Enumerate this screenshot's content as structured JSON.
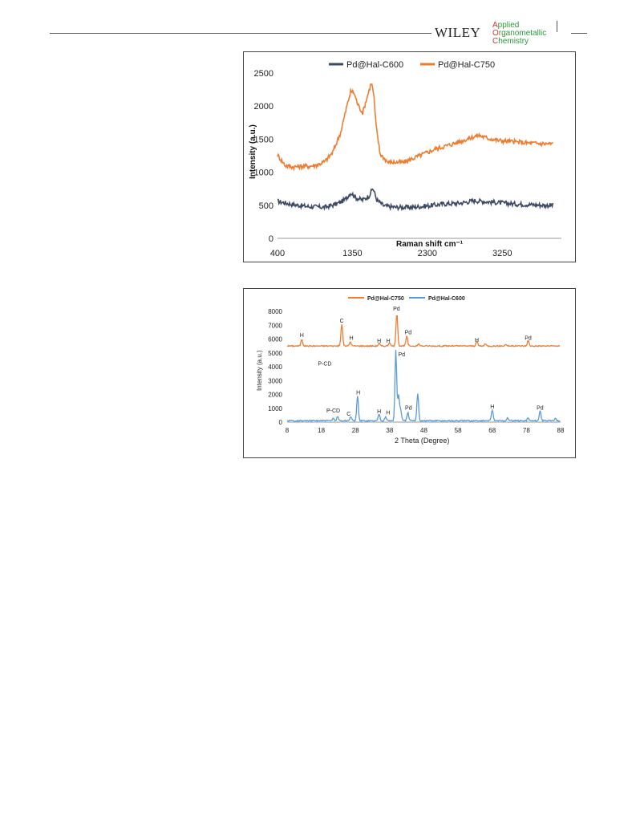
{
  "header": {
    "publisher": "WILEY",
    "journal_lines": [
      {
        "initial": "A",
        "rest": "pplied"
      },
      {
        "initial": "O",
        "rest": "rganometallic"
      },
      {
        "initial": "C",
        "rest": "hemistry"
      }
    ]
  },
  "colors": {
    "c600_dark": "#3d4a63",
    "c750_orange": "#ec7d31",
    "c600_blue": "#5b9bd5"
  },
  "chart_data": [
    {
      "type": "line",
      "xlabel": "Raman shift cm⁻¹",
      "ylabel": "Intensity (a.u.)",
      "xlim": [
        400,
        4000
      ],
      "ylim": [
        0,
        2500
      ],
      "x_ticks": [
        400,
        1350,
        2300,
        3250
      ],
      "y_ticks": [
        0,
        500,
        1000,
        1500,
        2000,
        2500
      ],
      "legend_position": "top",
      "grid": false,
      "series": [
        {
          "name": "Pd@Hal-C600",
          "color": "#3d4a63",
          "points": [
            [
              400,
              560
            ],
            [
              600,
              510
            ],
            [
              800,
              480
            ],
            [
              1000,
              470
            ],
            [
              1150,
              520
            ],
            [
              1250,
              580
            ],
            [
              1330,
              690
            ],
            [
              1400,
              610
            ],
            [
              1480,
              580
            ],
            [
              1560,
              640
            ],
            [
              1610,
              760
            ],
            [
              1660,
              580
            ],
            [
              1750,
              490
            ],
            [
              1900,
              470
            ],
            [
              2100,
              470
            ],
            [
              2300,
              490
            ],
            [
              2500,
              520
            ],
            [
              2700,
              530
            ],
            [
              2900,
              570
            ],
            [
              3000,
              560
            ],
            [
              3200,
              540
            ],
            [
              3400,
              520
            ],
            [
              3600,
              510
            ],
            [
              3800,
              500
            ],
            [
              3900,
              500
            ]
          ]
        },
        {
          "name": "Pd@Hal-C750",
          "color": "#ec7d31",
          "points": [
            [
              400,
              1260
            ],
            [
              500,
              1100
            ],
            [
              600,
              1080
            ],
            [
              700,
              1090
            ],
            [
              800,
              1090
            ],
            [
              900,
              1110
            ],
            [
              1000,
              1160
            ],
            [
              1100,
              1300
            ],
            [
              1200,
              1600
            ],
            [
              1280,
              2000
            ],
            [
              1330,
              2230
            ],
            [
              1370,
              2200
            ],
            [
              1420,
              2020
            ],
            [
              1480,
              1900
            ],
            [
              1540,
              2150
            ],
            [
              1590,
              2360
            ],
            [
              1620,
              2180
            ],
            [
              1650,
              1700
            ],
            [
              1700,
              1280
            ],
            [
              1800,
              1150
            ],
            [
              2000,
              1150
            ],
            [
              2200,
              1250
            ],
            [
              2400,
              1350
            ],
            [
              2600,
              1420
            ],
            [
              2800,
              1500
            ],
            [
              2950,
              1560
            ],
            [
              3050,
              1520
            ],
            [
              3200,
              1480
            ],
            [
              3400,
              1460
            ],
            [
              3600,
              1440
            ],
            [
              3800,
              1430
            ],
            [
              3900,
              1430
            ]
          ]
        }
      ]
    },
    {
      "type": "line",
      "xlabel": "2 Theta (Degree)",
      "ylabel": "Intensity (a.u.)",
      "xlim": [
        8,
        88
      ],
      "ylim": [
        0,
        8000
      ],
      "x_ticks": [
        8,
        18,
        28,
        38,
        48,
        58,
        68,
        78,
        88
      ],
      "y_ticks": [
        0,
        1000,
        2000,
        3000,
        4000,
        5000,
        6000,
        7000,
        8000
      ],
      "legend_position": "top",
      "grid": false,
      "series": [
        {
          "name": "Pd@Hal-C750",
          "color": "#ec7d31",
          "baseline": 5500,
          "peaks": [
            [
              12.3,
              500
            ],
            [
              24.0,
              1600
            ],
            [
              26.5,
              300
            ],
            [
              34.9,
              200
            ],
            [
              37.9,
              250
            ],
            [
              40.1,
              2400
            ],
            [
              43.0,
              700
            ],
            [
              46.5,
              150
            ],
            [
              63.5,
              350
            ],
            [
              66,
              150
            ],
            [
              72,
              120
            ],
            [
              78.5,
              400
            ]
          ]
        },
        {
          "name": "Pd@Hal-C600",
          "color": "#5b9bd5",
          "baseline": 100,
          "peaks": [
            [
              21.5,
              200
            ],
            [
              22.8,
              300
            ],
            [
              26.6,
              300
            ],
            [
              28.6,
              1800
            ],
            [
              34.9,
              500
            ],
            [
              36.8,
              300
            ],
            [
              39.8,
              5100
            ],
            [
              40.6,
              1800
            ],
            [
              41.2,
              800
            ],
            [
              43.3,
              600
            ],
            [
              46.2,
              2000
            ],
            [
              68.0,
              800
            ],
            [
              72.5,
              200
            ],
            [
              78.5,
              200
            ],
            [
              82.0,
              750
            ],
            [
              86.5,
              200
            ]
          ]
        }
      ],
      "annotations": [
        {
          "text": "H",
          "x": 12.3,
          "y": 6150
        },
        {
          "text": "C",
          "x": 24.0,
          "y": 7200
        },
        {
          "text": "H",
          "x": 26.8,
          "y": 5950
        },
        {
          "text": "H",
          "x": 34.9,
          "y": 5750
        },
        {
          "text": "H",
          "x": 37.6,
          "y": 5750
        },
        {
          "text": "Pd",
          "x": 40.0,
          "y": 8050
        },
        {
          "text": "Pd",
          "x": 43.4,
          "y": 6350
        },
        {
          "text": "H",
          "x": 63.5,
          "y": 5800
        },
        {
          "text": "Pd",
          "x": 78.5,
          "y": 5950
        },
        {
          "text": "P-CD",
          "x": 19.0,
          "y": 4100
        },
        {
          "text": "Pd",
          "x": 41.5,
          "y": 4750
        },
        {
          "text": "H",
          "x": 28.8,
          "y": 2000
        },
        {
          "text": "P-CD",
          "x": 21.5,
          "y": 700
        },
        {
          "text": "C",
          "x": 26.0,
          "y": 450
        },
        {
          "text": "H",
          "x": 34.9,
          "y": 650
        },
        {
          "text": "H",
          "x": 37.5,
          "y": 550
        },
        {
          "text": "Pd",
          "x": 43.5,
          "y": 900
        },
        {
          "text": "H",
          "x": 68.0,
          "y": 1000
        },
        {
          "text": "Pd",
          "x": 82.0,
          "y": 900
        }
      ]
    }
  ]
}
